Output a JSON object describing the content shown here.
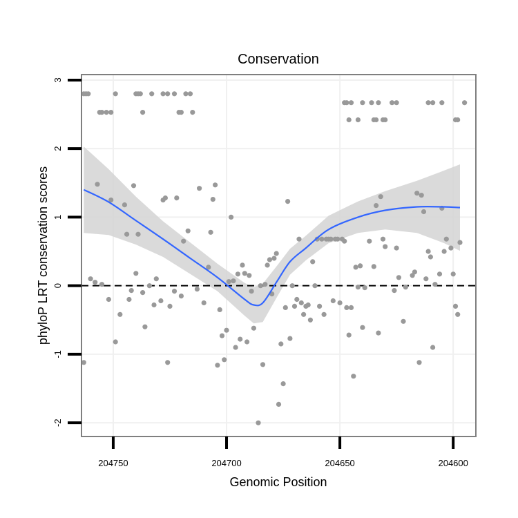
{
  "chart_data": {
    "type": "scatter",
    "title": "Conservation",
    "xlabel": "Genomic Position",
    "ylabel": "phyloP LRT conservation scores",
    "x_reversed": true,
    "xlim": [
      204590,
      204764
    ],
    "ylim": [
      -2.2,
      3.08
    ],
    "x_ticks": [
      204750,
      204700,
      204650,
      204600
    ],
    "x_tick_labels": [
      "204750",
      "204700",
      "204650",
      "204600"
    ],
    "y_ticks": [
      -2,
      -1,
      0,
      1,
      2,
      3
    ],
    "y_tick_labels": [
      "-2",
      "-1",
      "0",
      "1",
      "2",
      "3"
    ],
    "reference_line": {
      "y": 0,
      "style": "dashed"
    },
    "colors": {
      "points": "#999999",
      "smooth_line": "#3366FF",
      "confidence_band": "#D3D3D3",
      "reference_line": "#000000",
      "panel_border": "#7F7F7F",
      "grid": "#F0F0F0"
    },
    "smooth": {
      "x": [
        204763,
        204752,
        204740,
        204728,
        204716,
        204704,
        204692,
        204688,
        204684,
        204678,
        204672,
        204665,
        204655,
        204642,
        204630,
        204616,
        204604,
        204597
      ],
      "y": [
        1.4,
        1.22,
        0.95,
        0.68,
        0.4,
        0.12,
        -0.2,
        -0.28,
        -0.25,
        0.05,
        0.35,
        0.55,
        0.82,
        1.0,
        1.1,
        1.15,
        1.15,
        1.14
      ],
      "lower": [
        0.77,
        0.74,
        0.6,
        0.42,
        0.17,
        -0.08,
        -0.44,
        -0.55,
        -0.53,
        -0.18,
        0.16,
        0.37,
        0.62,
        0.77,
        0.82,
        0.77,
        0.62,
        0.51
      ],
      "upper": [
        2.03,
        1.7,
        1.3,
        0.94,
        0.63,
        0.32,
        0.04,
        -0.02,
        0.03,
        0.28,
        0.54,
        0.73,
        1.02,
        1.23,
        1.38,
        1.53,
        1.68,
        1.77
      ]
    },
    "points": [
      {
        "x": 204763,
        "y": 2.8
      },
      {
        "x": 204762,
        "y": 2.8
      },
      {
        "x": 204761,
        "y": 2.8
      },
      {
        "x": 204756,
        "y": 2.53
      },
      {
        "x": 204755,
        "y": 2.53
      },
      {
        "x": 204753,
        "y": 2.53
      },
      {
        "x": 204751,
        "y": 2.53
      },
      {
        "x": 204749,
        "y": 2.8
      },
      {
        "x": 204740,
        "y": 2.8
      },
      {
        "x": 204739,
        "y": 2.8
      },
      {
        "x": 204738,
        "y": 2.8
      },
      {
        "x": 204737,
        "y": 2.53
      },
      {
        "x": 204733,
        "y": 2.8
      },
      {
        "x": 204728,
        "y": 2.8
      },
      {
        "x": 204726,
        "y": 2.8
      },
      {
        "x": 204723,
        "y": 2.8
      },
      {
        "x": 204721,
        "y": 2.53
      },
      {
        "x": 204720,
        "y": 2.53
      },
      {
        "x": 204718,
        "y": 2.8
      },
      {
        "x": 204716,
        "y": 2.8
      },
      {
        "x": 204715,
        "y": 2.53
      },
      {
        "x": 204648,
        "y": 2.67
      },
      {
        "x": 204647,
        "y": 2.67
      },
      {
        "x": 204646,
        "y": 2.42
      },
      {
        "x": 204645,
        "y": 2.67
      },
      {
        "x": 204642,
        "y": 2.42
      },
      {
        "x": 204640,
        "y": 2.67
      },
      {
        "x": 204636,
        "y": 2.67
      },
      {
        "x": 204635,
        "y": 2.42
      },
      {
        "x": 204634,
        "y": 2.42
      },
      {
        "x": 204633,
        "y": 2.67
      },
      {
        "x": 204631,
        "y": 2.42
      },
      {
        "x": 204630,
        "y": 2.42
      },
      {
        "x": 204627,
        "y": 2.67
      },
      {
        "x": 204625,
        "y": 2.67
      },
      {
        "x": 204611,
        "y": 2.67
      },
      {
        "x": 204609,
        "y": 2.67
      },
      {
        "x": 204605,
        "y": 2.67
      },
      {
        "x": 204599,
        "y": 2.42
      },
      {
        "x": 204598,
        "y": 2.42
      },
      {
        "x": 204595,
        "y": 2.67
      },
      {
        "x": 204763,
        "y": -1.12
      },
      {
        "x": 204760,
        "y": 0.1
      },
      {
        "x": 204758,
        "y": 0.05
      },
      {
        "x": 204757,
        "y": 1.48
      },
      {
        "x": 204755,
        "y": 0.02
      },
      {
        "x": 204752,
        "y": -0.2
      },
      {
        "x": 204751,
        "y": 1.25
      },
      {
        "x": 204749,
        "y": -0.82
      },
      {
        "x": 204747,
        "y": -0.42
      },
      {
        "x": 204745,
        "y": 1.18
      },
      {
        "x": 204744,
        "y": 0.75
      },
      {
        "x": 204743,
        "y": -0.2
      },
      {
        "x": 204742,
        "y": -0.07
      },
      {
        "x": 204741,
        "y": 1.46
      },
      {
        "x": 204740,
        "y": 0.18
      },
      {
        "x": 204739,
        "y": 0.75
      },
      {
        "x": 204737,
        "y": -0.1
      },
      {
        "x": 204736,
        "y": -0.6
      },
      {
        "x": 204734,
        "y": 0.0
      },
      {
        "x": 204732,
        "y": -0.28
      },
      {
        "x": 204731,
        "y": 0.1
      },
      {
        "x": 204729,
        "y": -0.22
      },
      {
        "x": 204728,
        "y": 1.25
      },
      {
        "x": 204727,
        "y": 1.28
      },
      {
        "x": 204726,
        "y": -1.12
      },
      {
        "x": 204725,
        "y": -0.3
      },
      {
        "x": 204723,
        "y": -0.08
      },
      {
        "x": 204722,
        "y": 1.28
      },
      {
        "x": 204720,
        "y": -0.15
      },
      {
        "x": 204719,
        "y": 0.65
      },
      {
        "x": 204717,
        "y": 0.8
      },
      {
        "x": 204713,
        "y": -0.05
      },
      {
        "x": 204712,
        "y": 1.42
      },
      {
        "x": 204710,
        "y": -0.25
      },
      {
        "x": 204708,
        "y": 0.27
      },
      {
        "x": 204707,
        "y": 0.78
      },
      {
        "x": 204706,
        "y": 1.26
      },
      {
        "x": 204705,
        "y": 1.47
      },
      {
        "x": 204704,
        "y": -1.16
      },
      {
        "x": 204703,
        "y": -0.35
      },
      {
        "x": 204702,
        "y": -0.73
      },
      {
        "x": 204701,
        "y": -1.08
      },
      {
        "x": 204700,
        "y": -0.65
      },
      {
        "x": 204699,
        "y": 0.06
      },
      {
        "x": 204698,
        "y": 1.0
      },
      {
        "x": 204697,
        "y": 0.07
      },
      {
        "x": 204696,
        "y": -0.9
      },
      {
        "x": 204695,
        "y": 0.17
      },
      {
        "x": 204694,
        "y": -0.78
      },
      {
        "x": 204693,
        "y": 0.3
      },
      {
        "x": 204692,
        "y": 0.18
      },
      {
        "x": 204691,
        "y": -0.82
      },
      {
        "x": 204690,
        "y": 0.15
      },
      {
        "x": 204689,
        "y": -0.08
      },
      {
        "x": 204688,
        "y": -0.62
      },
      {
        "x": 204686,
        "y": -2.0
      },
      {
        "x": 204685,
        "y": 0.0
      },
      {
        "x": 204684,
        "y": -1.15
      },
      {
        "x": 204683,
        "y": 0.02
      },
      {
        "x": 204682,
        "y": 0.3
      },
      {
        "x": 204681,
        "y": 0.38
      },
      {
        "x": 204680,
        "y": -0.12
      },
      {
        "x": 204679,
        "y": 0.4
      },
      {
        "x": 204678,
        "y": 0.47
      },
      {
        "x": 204677,
        "y": -1.73
      },
      {
        "x": 204676,
        "y": -0.85
      },
      {
        "x": 204675,
        "y": -1.43
      },
      {
        "x": 204674,
        "y": -0.32
      },
      {
        "x": 204673,
        "y": 1.23
      },
      {
        "x": 204672,
        "y": -0.77
      },
      {
        "x": 204671,
        "y": 0.0
      },
      {
        "x": 204670,
        "y": -0.3
      },
      {
        "x": 204669,
        "y": -0.2
      },
      {
        "x": 204668,
        "y": 0.68
      },
      {
        "x": 204667,
        "y": -0.25
      },
      {
        "x": 204666,
        "y": -0.42
      },
      {
        "x": 204665,
        "y": -0.3
      },
      {
        "x": 204664,
        "y": -0.28
      },
      {
        "x": 204663,
        "y": -0.5
      },
      {
        "x": 204662,
        "y": 0.35
      },
      {
        "x": 204661,
        "y": 0.0
      },
      {
        "x": 204660,
        "y": 0.68
      },
      {
        "x": 204659,
        "y": -0.3
      },
      {
        "x": 204658,
        "y": 0.68
      },
      {
        "x": 204657,
        "y": -0.42
      },
      {
        "x": 204656,
        "y": 0.68
      },
      {
        "x": 204655,
        "y": 0.68
      },
      {
        "x": 204654,
        "y": 0.68
      },
      {
        "x": 204653,
        "y": -0.22
      },
      {
        "x": 204652,
        "y": 0.68
      },
      {
        "x": 204651,
        "y": 0.68
      },
      {
        "x": 204650,
        "y": -0.25
      },
      {
        "x": 204649,
        "y": 0.68
      },
      {
        "x": 204648,
        "y": 0.65
      },
      {
        "x": 204647,
        "y": -0.32
      },
      {
        "x": 204646,
        "y": -0.72
      },
      {
        "x": 204645,
        "y": -0.32
      },
      {
        "x": 204644,
        "y": -1.32
      },
      {
        "x": 204643,
        "y": 0.27
      },
      {
        "x": 204642,
        "y": -0.02
      },
      {
        "x": 204641,
        "y": 0.29
      },
      {
        "x": 204640,
        "y": -0.61
      },
      {
        "x": 204639,
        "y": -0.03
      },
      {
        "x": 204637,
        "y": 0.65
      },
      {
        "x": 204635,
        "y": 0.28
      },
      {
        "x": 204634,
        "y": 1.17
      },
      {
        "x": 204633,
        "y": -0.69
      },
      {
        "x": 204632,
        "y": 1.3
      },
      {
        "x": 204631,
        "y": 0.68
      },
      {
        "x": 204630,
        "y": 0.57
      },
      {
        "x": 204626,
        "y": -0.07
      },
      {
        "x": 204625,
        "y": 0.55
      },
      {
        "x": 204624,
        "y": 0.12
      },
      {
        "x": 204622,
        "y": -0.52
      },
      {
        "x": 204621,
        "y": -0.02
      },
      {
        "x": 204618,
        "y": 0.15
      },
      {
        "x": 204617,
        "y": 0.2
      },
      {
        "x": 204616,
        "y": 1.35
      },
      {
        "x": 204615,
        "y": -1.12
      },
      {
        "x": 204614,
        "y": 1.32
      },
      {
        "x": 204613,
        "y": 1.08
      },
      {
        "x": 204612,
        "y": 0.1
      },
      {
        "x": 204611,
        "y": 0.5
      },
      {
        "x": 204610,
        "y": 0.42
      },
      {
        "x": 204609,
        "y": -0.9
      },
      {
        "x": 204608,
        "y": 0.02
      },
      {
        "x": 204606,
        "y": 0.17
      },
      {
        "x": 204605,
        "y": 1.13
      },
      {
        "x": 204604,
        "y": 0.5
      },
      {
        "x": 204603,
        "y": 0.68
      },
      {
        "x": 204601,
        "y": 0.55
      },
      {
        "x": 204600,
        "y": 0.17
      },
      {
        "x": 204599,
        "y": -0.3
      },
      {
        "x": 204598,
        "y": -0.42
      },
      {
        "x": 204597,
        "y": 0.63
      }
    ]
  }
}
